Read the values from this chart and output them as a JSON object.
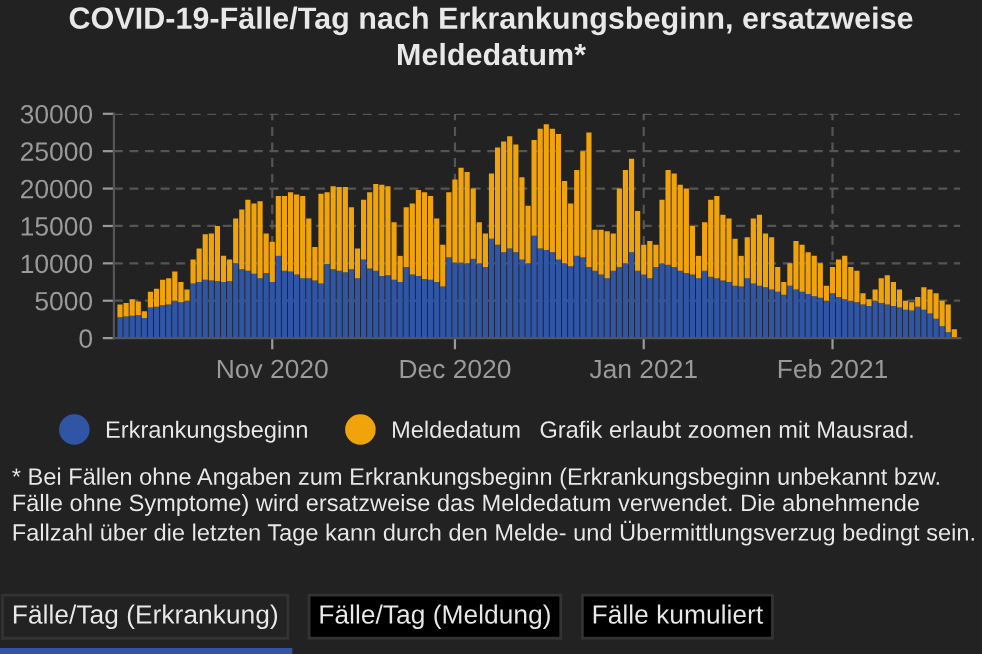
{
  "chart_data": {
    "type": "bar",
    "stacked": true,
    "title": "COVID-19-Fälle/Tag nach Erkrankungsbeginn, ersatzweise Meldedatum*",
    "x": [
      "2020-10-07",
      "2020-10-08",
      "2020-10-09",
      "2020-10-10",
      "2020-10-11",
      "2020-10-12",
      "2020-10-13",
      "2020-10-14",
      "2020-10-15",
      "2020-10-16",
      "2020-10-17",
      "2020-10-18",
      "2020-10-19",
      "2020-10-20",
      "2020-10-21",
      "2020-10-22",
      "2020-10-23",
      "2020-10-24",
      "2020-10-25",
      "2020-10-26",
      "2020-10-27",
      "2020-10-28",
      "2020-10-29",
      "2020-10-30",
      "2020-10-31",
      "2020-11-01",
      "2020-11-02",
      "2020-11-03",
      "2020-11-04",
      "2020-11-05",
      "2020-11-06",
      "2020-11-07",
      "2020-11-08",
      "2020-11-09",
      "2020-11-10",
      "2020-11-11",
      "2020-11-12",
      "2020-11-13",
      "2020-11-14",
      "2020-11-15",
      "2020-11-16",
      "2020-11-17",
      "2020-11-18",
      "2020-11-19",
      "2020-11-20",
      "2020-11-21",
      "2020-11-22",
      "2020-11-23",
      "2020-11-24",
      "2020-11-25",
      "2020-11-26",
      "2020-11-27",
      "2020-11-28",
      "2020-11-29",
      "2020-11-30",
      "2020-12-01",
      "2020-12-02",
      "2020-12-03",
      "2020-12-04",
      "2020-12-05",
      "2020-12-06",
      "2020-12-07",
      "2020-12-08",
      "2020-12-09",
      "2020-12-10",
      "2020-12-11",
      "2020-12-12",
      "2020-12-13",
      "2020-12-14",
      "2020-12-15",
      "2020-12-16",
      "2020-12-17",
      "2020-12-18",
      "2020-12-19",
      "2020-12-20",
      "2020-12-21",
      "2020-12-22",
      "2020-12-23",
      "2020-12-24",
      "2020-12-25",
      "2020-12-26",
      "2020-12-27",
      "2020-12-28",
      "2020-12-29",
      "2020-12-30",
      "2020-12-31",
      "2021-01-01",
      "2021-01-02",
      "2021-01-03",
      "2021-01-04",
      "2021-01-05",
      "2021-01-06",
      "2021-01-07",
      "2021-01-08",
      "2021-01-09",
      "2021-01-10",
      "2021-01-11",
      "2021-01-12",
      "2021-01-13",
      "2021-01-14",
      "2021-01-15",
      "2021-01-16",
      "2021-01-17",
      "2021-01-18",
      "2021-01-19",
      "2021-01-20",
      "2021-01-21",
      "2021-01-22",
      "2021-01-23",
      "2021-01-24",
      "2021-01-25",
      "2021-01-26",
      "2021-01-27",
      "2021-01-28",
      "2021-01-29",
      "2021-01-30",
      "2021-01-31",
      "2021-02-01",
      "2021-02-02",
      "2021-02-03",
      "2021-02-04",
      "2021-02-05",
      "2021-02-06",
      "2021-02-07",
      "2021-02-08",
      "2021-02-09",
      "2021-02-10",
      "2021-02-11",
      "2021-02-12",
      "2021-02-13",
      "2021-02-14",
      "2021-02-15",
      "2021-02-16",
      "2021-02-17",
      "2021-02-18",
      "2021-02-19",
      "2021-02-20",
      "2021-02-21"
    ],
    "series": [
      {
        "name": "Erkrankungsbeginn",
        "color": "#2f55a4",
        "values": [
          2800,
          2900,
          3000,
          3100,
          2700,
          4100,
          4200,
          4400,
          4500,
          5000,
          4800,
          5000,
          7300,
          7500,
          7800,
          7700,
          7600,
          7500,
          7600,
          10000,
          9200,
          9000,
          8600,
          8000,
          8700,
          7500,
          11000,
          9000,
          8900,
          8500,
          8000,
          8000,
          7700,
          7300,
          9900,
          9200,
          9000,
          8800,
          9200,
          8000,
          10500,
          9300,
          9000,
          8300,
          8400,
          7800,
          7500,
          9500,
          8500,
          8300,
          7900,
          7800,
          7500,
          6900,
          10800,
          10100,
          10100,
          10000,
          10600,
          10000,
          9500,
          13300,
          12500,
          11500,
          12000,
          11500,
          10500,
          10000,
          13700,
          12000,
          11800,
          11500,
          10500,
          10000,
          9600,
          11000,
          10800,
          9500,
          9000,
          8500,
          8000,
          9000,
          9500,
          10000,
          11500,
          9000,
          8500,
          8000,
          9500,
          10000,
          9800,
          9500,
          9000,
          8700,
          8500,
          8000,
          9000,
          8200,
          8000,
          7700,
          7500,
          7000,
          6900,
          8000,
          7300,
          7000,
          6800,
          6500,
          6200,
          5800,
          7000,
          6500,
          6200,
          5900,
          5600,
          5400,
          5000,
          6000,
          5500,
          5200,
          5000,
          4800,
          4500,
          4300,
          5000,
          4700,
          4500,
          4300,
          4100,
          3800,
          3700,
          4200,
          3800,
          3300,
          2600,
          1600,
          800,
          null
        ]
      },
      {
        "name": "Meldedatum",
        "color": "#f0a30a",
        "values": [
          1700,
          1800,
          2200,
          1800,
          900,
          2100,
          2400,
          3400,
          3500,
          3900,
          2700,
          1500,
          3200,
          4500,
          6100,
          6300,
          7400,
          3500,
          2900,
          6000,
          8000,
          9500,
          9400,
          10300,
          5300,
          5400,
          8000,
          10000,
          10600,
          10700,
          11000,
          8000,
          4500,
          12000,
          9600,
          11100,
          11200,
          11400,
          8300,
          4000,
          8000,
          10200,
          11600,
          12200,
          11900,
          7700,
          3500,
          8000,
          9500,
          11500,
          11600,
          11200,
          8500,
          5600,
          8700,
          11100,
          12700,
          12200,
          9400,
          5500,
          4500,
          8700,
          13000,
          14800,
          15000,
          14400,
          11000,
          7700,
          12800,
          16000,
          16800,
          16500,
          16800,
          11000,
          8400,
          11500,
          14200,
          18000,
          5500,
          6000,
          6300,
          5000,
          10500,
          12500,
          12500,
          8000,
          4000,
          5000,
          3000,
          8500,
          12700,
          12500,
          11500,
          11300,
          6500,
          3000,
          6500,
          10300,
          11000,
          8800,
          8500,
          6300,
          4100,
          5500,
          8700,
          9500,
          7200,
          7000,
          3300,
          1700,
          3000,
          6500,
          6300,
          5600,
          5400,
          4600,
          2000,
          3500,
          5000,
          5800,
          4500,
          4200,
          1500,
          900,
          1500,
          3300,
          3900,
          3200,
          2400,
          1200,
          1100,
          1300,
          3000,
          3200,
          3400,
          3400,
          3700,
          1200
        ]
      }
    ],
    "xlim": [
      "2020-10-06",
      "2021-02-22"
    ],
    "xticks": [
      {
        "value": "2020-11-01",
        "label": "Nov 2020"
      },
      {
        "value": "2020-12-01",
        "label": "Dec 2020"
      },
      {
        "value": "2021-01-01",
        "label": "Jan 2021"
      },
      {
        "value": "2021-02-01",
        "label": "Feb 2021"
      }
    ],
    "ylim": [
      0,
      30000
    ],
    "yticks": [
      0,
      5000,
      10000,
      15000,
      20000,
      25000,
      30000
    ],
    "grid": true,
    "legend": "bottom",
    "annotations": [
      "Grafik erlaubt zoomen mit Mausrad.",
      "* Bei Fällen ohne Angaben zum Erkrankungsbeginn (Erkrankungsbeginn unbekannt bzw. Fälle ohne Symptome) wird ersatzweise das Meldedatum verwendet. Die abnehmende Fallzahl über die letzten Tage kann durch den Melde- und Übermittlungsverzug bedingt sein.",
      "Fälle/Tag (Erkrankung)",
      "Fälle/Tag (Meldung)",
      "Fälle kumuliert"
    ]
  }
}
